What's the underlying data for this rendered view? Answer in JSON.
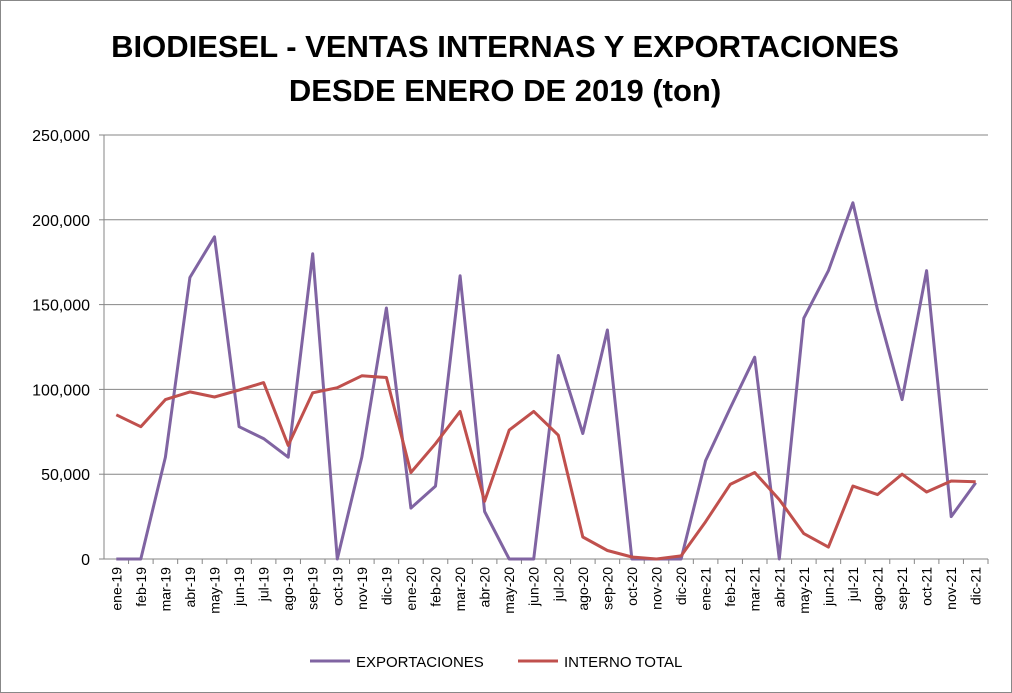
{
  "chart_data": {
    "type": "line",
    "title": [
      "BIODIESEL - VENTAS INTERNAS Y EXPORTACIONES",
      "DESDE ENERO DE 2019 (ton)"
    ],
    "xlabel": "",
    "ylabel": "",
    "ylim": [
      0,
      250000
    ],
    "yticks": [
      0,
      50000,
      100000,
      150000,
      200000,
      250000
    ],
    "ytick_labels": [
      "0",
      "50,000",
      "100,000",
      "150,000",
      "200,000",
      "250,000"
    ],
    "grid": true,
    "legend_position": "bottom",
    "categories": [
      "ene-19",
      "feb-19",
      "mar-19",
      "abr-19",
      "may-19",
      "jun-19",
      "jul-19",
      "ago-19",
      "sep-19",
      "oct-19",
      "nov-19",
      "dic-19",
      "ene-20",
      "feb-20",
      "mar-20",
      "abr-20",
      "may-20",
      "jun-20",
      "jul-20",
      "ago-20",
      "sep-20",
      "oct-20",
      "nov-20",
      "dic-20",
      "ene-21",
      "feb-21",
      "mar-21",
      "abr-21",
      "may-21",
      "jun-21",
      "jul-21",
      "ago-21",
      "sep-21",
      "oct-21",
      "nov-21",
      "dic-21"
    ],
    "series": [
      {
        "name": "EXPORTACIONES",
        "color": "#8064A2",
        "values": [
          0,
          0,
          60000,
          166000,
          190000,
          78000,
          71000,
          60000,
          180000,
          0,
          60000,
          148000,
          30000,
          43000,
          167000,
          28000,
          0,
          0,
          120000,
          74000,
          135000,
          0,
          0,
          0,
          58000,
          89000,
          119000,
          0,
          142000,
          170000,
          210000,
          147000,
          94000,
          170000,
          25000,
          45000
        ]
      },
      {
        "name": "INTERNO TOTAL",
        "color": "#C0504D",
        "values": [
          85000,
          78000,
          94000,
          98500,
          95500,
          99600,
          104000,
          67000,
          98000,
          101000,
          108000,
          107000,
          51000,
          68000,
          87000,
          34000,
          76000,
          87000,
          73000,
          13000,
          5000,
          1200,
          0,
          1800,
          22000,
          44000,
          51000,
          35000,
          15000,
          7000,
          43000,
          38000,
          50000,
          39500,
          46000,
          45500
        ]
      }
    ]
  }
}
